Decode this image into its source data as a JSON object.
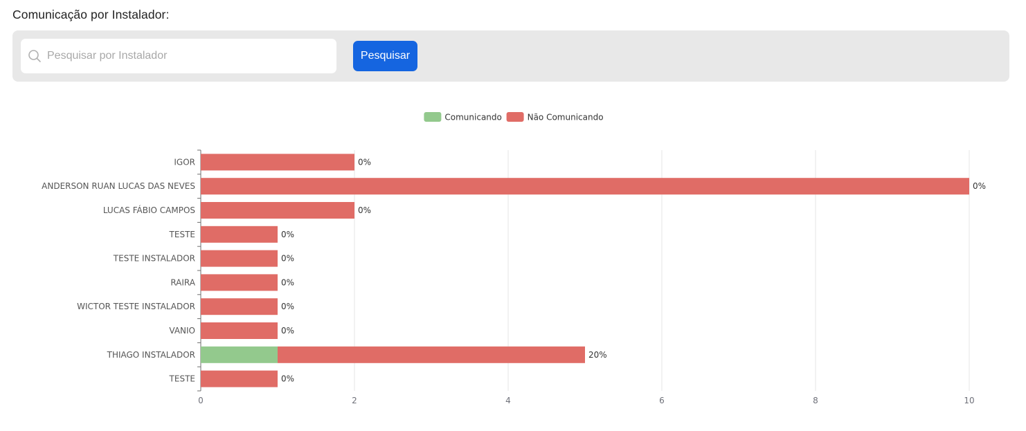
{
  "page": {
    "title": "Comunicação por Instalador:"
  },
  "search": {
    "placeholder": "Pesquisar por Instalador",
    "value": "",
    "button_label": "Pesquisar",
    "button_color": "#1565e0"
  },
  "chart_data": {
    "type": "bar",
    "orientation": "horizontal",
    "stacked": true,
    "categories": [
      "IGOR",
      "ANDERSON RUAN LUCAS DAS NEVES",
      "LUCAS FÁBIO CAMPOS",
      "TESTE",
      "TESTE INSTALADOR",
      "RAIRA",
      "WICTOR TESTE INSTALADOR",
      "VANIO",
      "THIAGO INSTALADOR",
      "TESTE"
    ],
    "series": [
      {
        "name": "Comunicando",
        "color": "#93c98d",
        "values": [
          0,
          0,
          0,
          0,
          0,
          0,
          0,
          0,
          1,
          0
        ]
      },
      {
        "name": "Não Comunicando",
        "color": "#e06c66",
        "values": [
          2,
          10,
          2,
          1,
          1,
          1,
          1,
          1,
          4,
          1
        ]
      }
    ],
    "data_labels": [
      "0%",
      "0%",
      "0%",
      "0%",
      "0%",
      "0%",
      "0%",
      "0%",
      "20%",
      "0%"
    ],
    "xlim": [
      0,
      10
    ],
    "xticks": [
      0,
      2,
      4,
      6,
      8,
      10
    ],
    "grid": "vertical",
    "legend_position": "top-center"
  }
}
